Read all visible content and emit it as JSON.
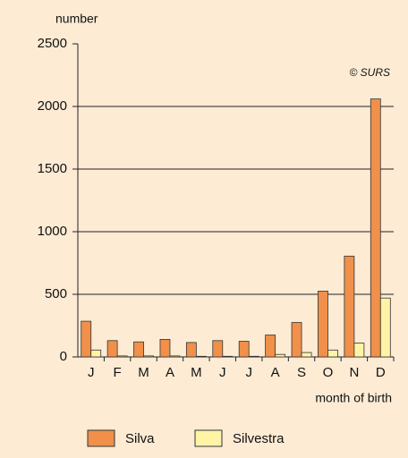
{
  "chart_data": {
    "type": "bar",
    "y_label": "number",
    "x_label": "month of birth",
    "annotation": "© SURS",
    "categories": [
      "J",
      "F",
      "M",
      "A",
      "M",
      "J",
      "J",
      "A",
      "S",
      "O",
      "N",
      "D"
    ],
    "series": [
      {
        "name": "Silva",
        "color": "#f0904a",
        "values": [
          285,
          130,
          120,
          140,
          115,
          130,
          125,
          175,
          275,
          525,
          805,
          2060
        ]
      },
      {
        "name": "Silvestra",
        "color": "#fff3a6",
        "values": [
          55,
          8,
          8,
          8,
          5,
          5,
          5,
          20,
          35,
          55,
          110,
          470
        ]
      }
    ],
    "ylim": [
      0,
      2500
    ],
    "yticks": [
      0,
      500,
      1000,
      1500,
      2000,
      2500
    ],
    "grid": true
  }
}
